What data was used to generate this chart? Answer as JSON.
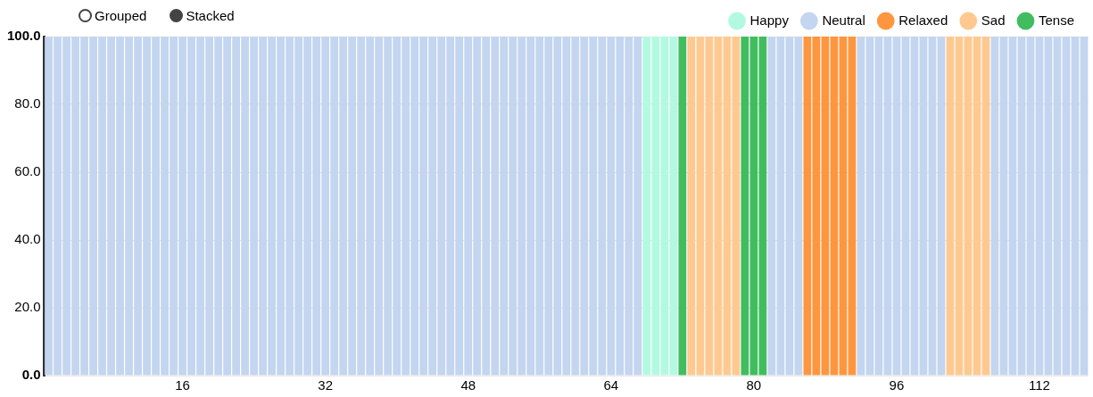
{
  "chart_data": {
    "type": "bar",
    "stacked": true,
    "categories": [
      null,
      null,
      null,
      null,
      null,
      null,
      null,
      null,
      null,
      null,
      null,
      null,
      null,
      null,
      null,
      "16",
      null,
      null,
      null,
      null,
      null,
      null,
      null,
      null,
      null,
      null,
      null,
      null,
      null,
      null,
      null,
      "32",
      null,
      null,
      null,
      null,
      null,
      null,
      null,
      null,
      null,
      null,
      null,
      null,
      null,
      null,
      null,
      "48",
      null,
      null,
      null,
      null,
      null,
      null,
      null,
      null,
      null,
      null,
      null,
      null,
      null,
      null,
      null,
      "64",
      null,
      null,
      null,
      null,
      null,
      null,
      null,
      null,
      null,
      null,
      null,
      null,
      null,
      null,
      null,
      "80",
      null,
      null,
      null,
      null,
      null,
      null,
      null,
      null,
      null,
      null,
      null,
      null,
      null,
      null,
      null,
      "96",
      null,
      null,
      null,
      null,
      null,
      null,
      null,
      null,
      null,
      null,
      null,
      null,
      null,
      null,
      null,
      "112",
      null,
      null,
      null,
      null,
      null
    ],
    "series": [
      {
        "name": "Happy",
        "color": "#b3f9e1",
        "values": [
          null,
          null,
          null,
          null,
          null,
          null,
          null,
          null,
          null,
          null,
          null,
          null,
          null,
          null,
          null,
          null,
          null,
          null,
          null,
          null,
          null,
          null,
          null,
          null,
          null,
          null,
          null,
          null,
          null,
          null,
          null,
          null,
          null,
          null,
          null,
          null,
          null,
          null,
          null,
          null,
          null,
          null,
          null,
          null,
          null,
          null,
          null,
          null,
          null,
          null,
          null,
          null,
          null,
          null,
          null,
          null,
          null,
          null,
          null,
          null,
          null,
          null,
          null,
          null,
          null,
          null,
          null,
          100,
          100,
          100,
          100,
          null,
          null,
          null,
          null,
          null,
          null,
          null,
          null,
          null,
          null,
          null,
          null,
          null,
          null,
          null,
          null,
          null,
          null,
          null,
          null,
          null,
          null,
          null,
          null,
          null,
          null,
          null,
          null,
          null,
          null,
          null,
          null,
          null,
          null,
          null,
          null,
          null,
          null,
          null,
          null,
          null,
          null,
          null,
          null,
          null,
          null
        ]
      },
      {
        "name": "Neutral",
        "color": "#c3d5ef",
        "values": [
          100,
          100,
          100,
          100,
          100,
          100,
          100,
          100,
          100,
          100,
          100,
          100,
          100,
          100,
          100,
          100,
          100,
          100,
          100,
          100,
          100,
          100,
          100,
          100,
          100,
          100,
          100,
          100,
          100,
          100,
          100,
          100,
          100,
          100,
          100,
          100,
          100,
          100,
          100,
          100,
          100,
          100,
          100,
          100,
          100,
          100,
          100,
          100,
          100,
          100,
          100,
          100,
          100,
          100,
          100,
          100,
          100,
          100,
          100,
          100,
          100,
          100,
          100,
          100,
          100,
          100,
          100,
          null,
          null,
          null,
          null,
          null,
          null,
          null,
          null,
          null,
          null,
          null,
          null,
          null,
          null,
          100,
          100,
          100,
          100,
          null,
          null,
          null,
          null,
          null,
          null,
          100,
          100,
          100,
          100,
          100,
          100,
          100,
          100,
          100,
          100,
          null,
          null,
          null,
          null,
          null,
          100,
          100,
          100,
          100,
          100,
          100,
          100,
          100,
          100,
          100,
          100
        ]
      },
      {
        "name": "Relaxed",
        "color": "#fe963f",
        "values": [
          null,
          null,
          null,
          null,
          null,
          null,
          null,
          null,
          null,
          null,
          null,
          null,
          null,
          null,
          null,
          null,
          null,
          null,
          null,
          null,
          null,
          null,
          null,
          null,
          null,
          null,
          null,
          null,
          null,
          null,
          null,
          null,
          null,
          null,
          null,
          null,
          null,
          null,
          null,
          null,
          null,
          null,
          null,
          null,
          null,
          null,
          null,
          null,
          null,
          null,
          null,
          null,
          null,
          null,
          null,
          null,
          null,
          null,
          null,
          null,
          null,
          null,
          null,
          null,
          null,
          null,
          null,
          null,
          null,
          null,
          null,
          null,
          null,
          null,
          null,
          null,
          null,
          null,
          null,
          null,
          null,
          null,
          null,
          null,
          null,
          100,
          100,
          100,
          100,
          100,
          100,
          null,
          null,
          null,
          null,
          null,
          null,
          null,
          null,
          null,
          null,
          null,
          null,
          null,
          null,
          null,
          null,
          null,
          null,
          null,
          null,
          null,
          null,
          null,
          null,
          null,
          null
        ]
      },
      {
        "name": "Sad",
        "color": "#fec990",
        "values": [
          null,
          null,
          null,
          null,
          null,
          null,
          null,
          null,
          null,
          null,
          null,
          null,
          null,
          null,
          null,
          null,
          null,
          null,
          null,
          null,
          null,
          null,
          null,
          null,
          null,
          null,
          null,
          null,
          null,
          null,
          null,
          null,
          null,
          null,
          null,
          null,
          null,
          null,
          null,
          null,
          null,
          null,
          null,
          null,
          null,
          null,
          null,
          null,
          null,
          null,
          null,
          null,
          null,
          null,
          null,
          null,
          null,
          null,
          null,
          null,
          null,
          null,
          null,
          null,
          null,
          null,
          null,
          null,
          null,
          null,
          null,
          null,
          100,
          100,
          100,
          100,
          100,
          100,
          null,
          null,
          null,
          null,
          null,
          null,
          null,
          null,
          null,
          null,
          null,
          null,
          null,
          null,
          null,
          null,
          null,
          null,
          null,
          null,
          null,
          null,
          null,
          100,
          100,
          100,
          100,
          100,
          null,
          null,
          null,
          null,
          null,
          null,
          null,
          null,
          null,
          null,
          null
        ]
      },
      {
        "name": "Tense",
        "color": "#41bd60",
        "values": [
          null,
          null,
          null,
          null,
          null,
          null,
          null,
          null,
          null,
          null,
          null,
          null,
          null,
          null,
          null,
          null,
          null,
          null,
          null,
          null,
          null,
          null,
          null,
          null,
          null,
          null,
          null,
          null,
          null,
          null,
          null,
          null,
          null,
          null,
          null,
          null,
          null,
          null,
          null,
          null,
          null,
          null,
          null,
          null,
          null,
          null,
          null,
          null,
          null,
          null,
          null,
          null,
          null,
          null,
          null,
          null,
          null,
          null,
          null,
          null,
          null,
          null,
          null,
          null,
          null,
          null,
          null,
          null,
          null,
          null,
          null,
          100,
          null,
          null,
          null,
          null,
          null,
          null,
          100,
          100,
          100,
          null,
          null,
          null,
          null,
          null,
          null,
          null,
          null,
          null,
          null,
          null,
          null,
          null,
          null,
          null,
          null,
          null,
          null,
          null,
          null,
          null,
          null,
          null,
          null,
          null,
          null,
          null,
          null,
          null,
          null,
          null,
          null,
          null,
          null,
          null,
          null
        ]
      }
    ],
    "ylim": [
      0,
      100
    ],
    "yticks": [
      {
        "value": 0,
        "label": "0.0"
      },
      {
        "value": 20,
        "label": "20.0"
      },
      {
        "value": 40,
        "label": "40.0"
      },
      {
        "value": 60,
        "label": "60.0"
      },
      {
        "value": 80,
        "label": "80.0"
      },
      {
        "value": 100,
        "label": "100.0"
      }
    ],
    "grid": "y",
    "legend": "top right",
    "annotations": [
      "Grouped",
      "Stacked"
    ]
  }
}
